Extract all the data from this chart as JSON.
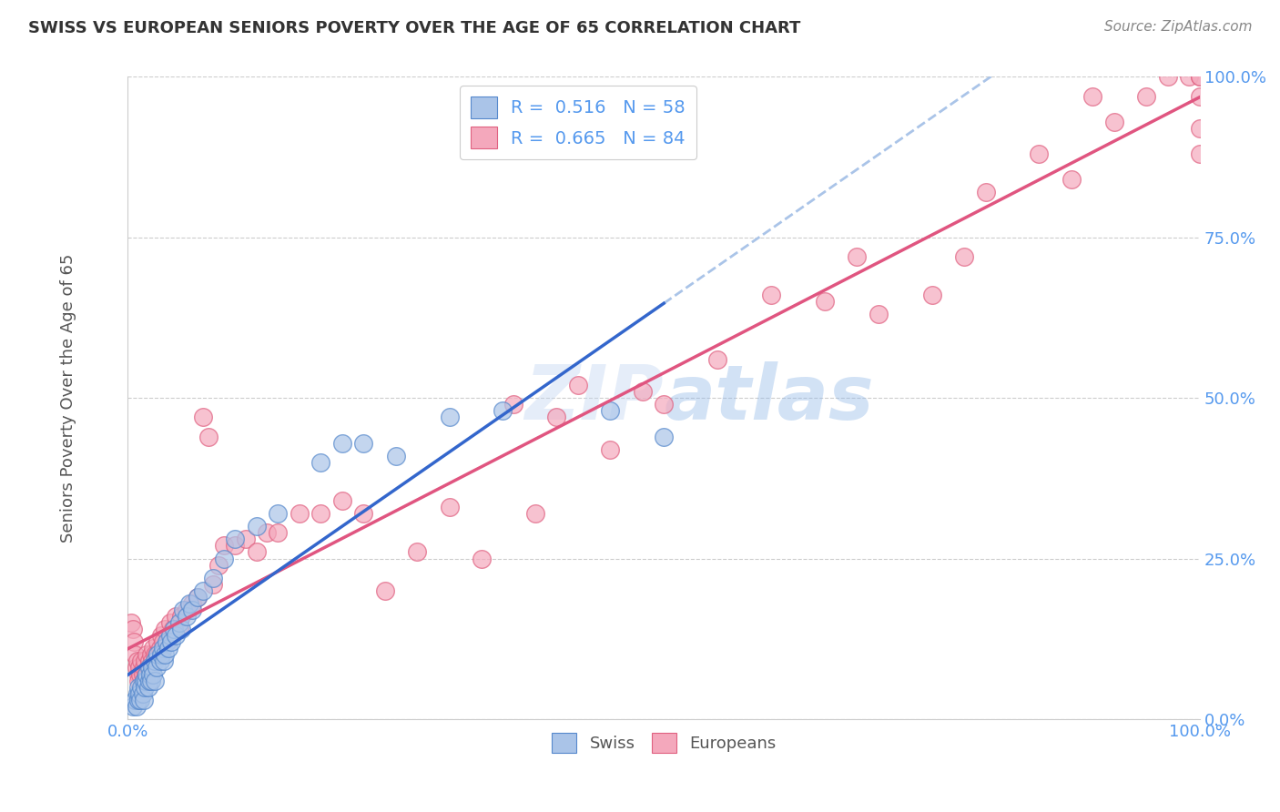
{
  "title": "SWISS VS EUROPEAN SENIORS POVERTY OVER THE AGE OF 65 CORRELATION CHART",
  "source": "Source: ZipAtlas.com",
  "ylabel": "Seniors Poverty Over the Age of 65",
  "xlim": [
    0,
    1
  ],
  "ylim": [
    0,
    1
  ],
  "y_tick_positions": [
    0.0,
    0.25,
    0.5,
    0.75,
    1.0
  ],
  "y_tick_labels": [
    "0.0%",
    "25.0%",
    "50.0%",
    "75.0%",
    "100.0%"
  ],
  "x_tick_labels": [
    "0.0%",
    "100.0%"
  ],
  "watermark": "ZIPatlas",
  "swiss_R": "0.516",
  "swiss_N": "58",
  "euro_R": "0.665",
  "euro_N": "84",
  "swiss_color": "#aac4e8",
  "euro_color": "#f4a8bc",
  "swiss_edge_color": "#5588cc",
  "euro_edge_color": "#e06080",
  "swiss_line_color": "#3366cc",
  "euro_line_color": "#e05580",
  "dashed_line_color": "#aac4e8",
  "blue_label_color": "#5599ee",
  "legend_swiss_fill": "#aac4e8",
  "legend_euro_fill": "#f4a8bc",
  "swiss_points_x": [
    0.005,
    0.007,
    0.008,
    0.009,
    0.01,
    0.01,
    0.011,
    0.012,
    0.013,
    0.014,
    0.015,
    0.015,
    0.016,
    0.017,
    0.018,
    0.019,
    0.02,
    0.02,
    0.021,
    0.022,
    0.023,
    0.024,
    0.025,
    0.025,
    0.027,
    0.028,
    0.03,
    0.031,
    0.033,
    0.034,
    0.035,
    0.036,
    0.038,
    0.04,
    0.041,
    0.043,
    0.045,
    0.048,
    0.05,
    0.052,
    0.055,
    0.058,
    0.06,
    0.065,
    0.07,
    0.08,
    0.09,
    0.1,
    0.12,
    0.14,
    0.18,
    0.2,
    0.22,
    0.25,
    0.3,
    0.35,
    0.45,
    0.5
  ],
  "swiss_points_y": [
    0.02,
    0.03,
    0.02,
    0.04,
    0.03,
    0.05,
    0.04,
    0.03,
    0.05,
    0.04,
    0.06,
    0.03,
    0.05,
    0.06,
    0.07,
    0.05,
    0.06,
    0.08,
    0.07,
    0.06,
    0.08,
    0.07,
    0.09,
    0.06,
    0.08,
    0.1,
    0.09,
    0.1,
    0.11,
    0.09,
    0.1,
    0.12,
    0.11,
    0.13,
    0.12,
    0.14,
    0.13,
    0.15,
    0.14,
    0.17,
    0.16,
    0.18,
    0.17,
    0.19,
    0.2,
    0.22,
    0.25,
    0.28,
    0.3,
    0.32,
    0.4,
    0.43,
    0.43,
    0.41,
    0.47,
    0.48,
    0.48,
    0.44
  ],
  "euro_points_x": [
    0.003,
    0.005,
    0.006,
    0.007,
    0.008,
    0.009,
    0.01,
    0.01,
    0.011,
    0.012,
    0.013,
    0.014,
    0.015,
    0.015,
    0.016,
    0.017,
    0.018,
    0.019,
    0.02,
    0.021,
    0.022,
    0.023,
    0.024,
    0.025,
    0.027,
    0.028,
    0.03,
    0.031,
    0.033,
    0.035,
    0.037,
    0.04,
    0.042,
    0.045,
    0.048,
    0.05,
    0.055,
    0.06,
    0.065,
    0.07,
    0.075,
    0.08,
    0.085,
    0.09,
    0.1,
    0.11,
    0.12,
    0.13,
    0.14,
    0.16,
    0.18,
    0.2,
    0.22,
    0.24,
    0.27,
    0.3,
    0.33,
    0.36,
    0.38,
    0.4,
    0.42,
    0.45,
    0.48,
    0.5,
    0.55,
    0.6,
    0.65,
    0.68,
    0.7,
    0.75,
    0.78,
    0.8,
    0.85,
    0.88,
    0.9,
    0.92,
    0.95,
    0.97,
    0.99,
    1.0,
    1.0,
    1.0,
    1.0,
    1.0
  ],
  "euro_points_y": [
    0.15,
    0.14,
    0.12,
    0.1,
    0.08,
    0.09,
    0.07,
    0.06,
    0.08,
    0.07,
    0.09,
    0.07,
    0.08,
    0.06,
    0.09,
    0.07,
    0.1,
    0.08,
    0.09,
    0.08,
    0.1,
    0.09,
    0.11,
    0.1,
    0.1,
    0.12,
    0.11,
    0.13,
    0.12,
    0.14,
    0.12,
    0.15,
    0.14,
    0.16,
    0.14,
    0.16,
    0.17,
    0.18,
    0.19,
    0.47,
    0.44,
    0.21,
    0.24,
    0.27,
    0.27,
    0.28,
    0.26,
    0.29,
    0.29,
    0.32,
    0.32,
    0.34,
    0.32,
    0.2,
    0.26,
    0.33,
    0.25,
    0.49,
    0.32,
    0.47,
    0.52,
    0.42,
    0.51,
    0.49,
    0.56,
    0.66,
    0.65,
    0.72,
    0.63,
    0.66,
    0.72,
    0.82,
    0.88,
    0.84,
    0.97,
    0.93,
    0.97,
    1.0,
    1.0,
    1.0,
    0.97,
    0.92,
    0.88,
    1.0
  ]
}
